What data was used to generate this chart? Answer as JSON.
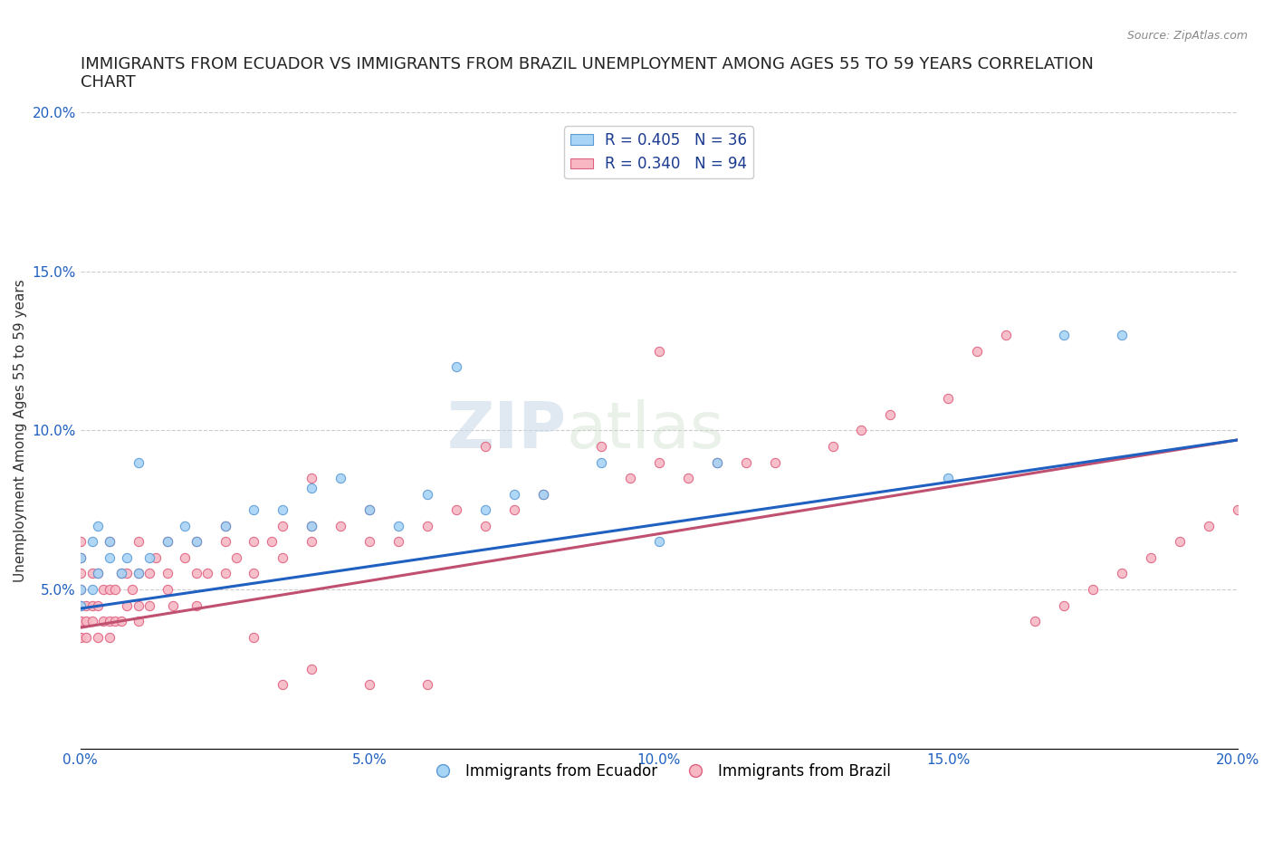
{
  "title": "IMMIGRANTS FROM ECUADOR VS IMMIGRANTS FROM BRAZIL UNEMPLOYMENT AMONG AGES 55 TO 59 YEARS CORRELATION\nCHART",
  "source_text": "Source: ZipAtlas.com",
  "ylabel": "Unemployment Among Ages 55 to 59 years",
  "xlim": [
    0.0,
    0.2
  ],
  "ylim": [
    0.0,
    0.2
  ],
  "xticks": [
    0.0,
    0.05,
    0.1,
    0.15,
    0.2
  ],
  "yticks": [
    0.0,
    0.05,
    0.1,
    0.15,
    0.2
  ],
  "xticklabels": [
    "0.0%",
    "5.0%",
    "10.0%",
    "15.0%",
    "20.0%"
  ],
  "yticklabels": [
    "",
    "5.0%",
    "10.0%",
    "15.0%",
    "20.0%"
  ],
  "watermark_zip": "ZIP",
  "watermark_atlas": "atlas",
  "ecuador_color": "#a8d4f5",
  "ecuador_edge": "#5b9bd5",
  "brazil_color": "#f7b8c4",
  "brazil_edge": "#e06080",
  "ecuador_line_color": "#2060c0",
  "brazil_line_color": "#c05070",
  "ecuador_R": 0.405,
  "ecuador_N": 36,
  "brazil_R": 0.34,
  "brazil_N": 94,
  "legend_text_color": "#1a3a8f",
  "ecuador_line_x0": 0.0,
  "ecuador_line_y0": 0.044,
  "ecuador_line_x1": 0.2,
  "ecuador_line_y1": 0.097,
  "brazil_line_x0": 0.0,
  "brazil_line_y0": 0.038,
  "brazil_line_x1": 0.2,
  "brazil_line_y1": 0.097,
  "ecuador_x": [
    0.0,
    0.0,
    0.0,
    0.002,
    0.002,
    0.003,
    0.003,
    0.005,
    0.005,
    0.007,
    0.008,
    0.01,
    0.01,
    0.012,
    0.015,
    0.018,
    0.02,
    0.025,
    0.03,
    0.035,
    0.04,
    0.04,
    0.045,
    0.05,
    0.055,
    0.06,
    0.065,
    0.07,
    0.075,
    0.08,
    0.09,
    0.1,
    0.11,
    0.15,
    0.17,
    0.18
  ],
  "ecuador_y": [
    0.045,
    0.05,
    0.06,
    0.05,
    0.065,
    0.055,
    0.07,
    0.06,
    0.065,
    0.055,
    0.06,
    0.055,
    0.09,
    0.06,
    0.065,
    0.07,
    0.065,
    0.07,
    0.075,
    0.075,
    0.07,
    0.082,
    0.085,
    0.075,
    0.07,
    0.08,
    0.12,
    0.075,
    0.08,
    0.08,
    0.09,
    0.065,
    0.09,
    0.085,
    0.13,
    0.13
  ],
  "brazil_x": [
    0.0,
    0.0,
    0.0,
    0.0,
    0.0,
    0.0,
    0.0,
    0.001,
    0.001,
    0.001,
    0.002,
    0.002,
    0.002,
    0.003,
    0.003,
    0.003,
    0.004,
    0.004,
    0.005,
    0.005,
    0.005,
    0.005,
    0.006,
    0.006,
    0.007,
    0.007,
    0.008,
    0.008,
    0.009,
    0.01,
    0.01,
    0.01,
    0.01,
    0.012,
    0.012,
    0.013,
    0.015,
    0.015,
    0.015,
    0.016,
    0.018,
    0.02,
    0.02,
    0.02,
    0.022,
    0.025,
    0.025,
    0.025,
    0.027,
    0.03,
    0.03,
    0.033,
    0.035,
    0.035,
    0.04,
    0.04,
    0.04,
    0.045,
    0.05,
    0.05,
    0.055,
    0.06,
    0.065,
    0.07,
    0.07,
    0.075,
    0.08,
    0.09,
    0.095,
    0.1,
    0.1,
    0.105,
    0.11,
    0.115,
    0.12,
    0.13,
    0.135,
    0.14,
    0.15,
    0.155,
    0.16,
    0.165,
    0.17,
    0.175,
    0.18,
    0.185,
    0.19,
    0.195,
    0.2,
    0.03,
    0.035,
    0.04,
    0.05,
    0.06
  ],
  "brazil_y": [
    0.035,
    0.04,
    0.045,
    0.05,
    0.055,
    0.06,
    0.065,
    0.035,
    0.04,
    0.045,
    0.04,
    0.045,
    0.055,
    0.035,
    0.045,
    0.055,
    0.04,
    0.05,
    0.035,
    0.04,
    0.05,
    0.065,
    0.04,
    0.05,
    0.04,
    0.055,
    0.045,
    0.055,
    0.05,
    0.04,
    0.045,
    0.055,
    0.065,
    0.045,
    0.055,
    0.06,
    0.05,
    0.055,
    0.065,
    0.045,
    0.06,
    0.045,
    0.055,
    0.065,
    0.055,
    0.055,
    0.065,
    0.07,
    0.06,
    0.055,
    0.065,
    0.065,
    0.06,
    0.07,
    0.065,
    0.07,
    0.085,
    0.07,
    0.065,
    0.075,
    0.065,
    0.07,
    0.075,
    0.07,
    0.095,
    0.075,
    0.08,
    0.095,
    0.085,
    0.09,
    0.125,
    0.085,
    0.09,
    0.09,
    0.09,
    0.095,
    0.1,
    0.105,
    0.11,
    0.125,
    0.13,
    0.04,
    0.045,
    0.05,
    0.055,
    0.06,
    0.065,
    0.07,
    0.075,
    0.035,
    0.02,
    0.025,
    0.02,
    0.02
  ],
  "background_color": "#ffffff",
  "grid_color": "#cccccc",
  "title_fontsize": 13,
  "axis_label_fontsize": 11,
  "tick_fontsize": 11,
  "legend_fontsize": 12
}
